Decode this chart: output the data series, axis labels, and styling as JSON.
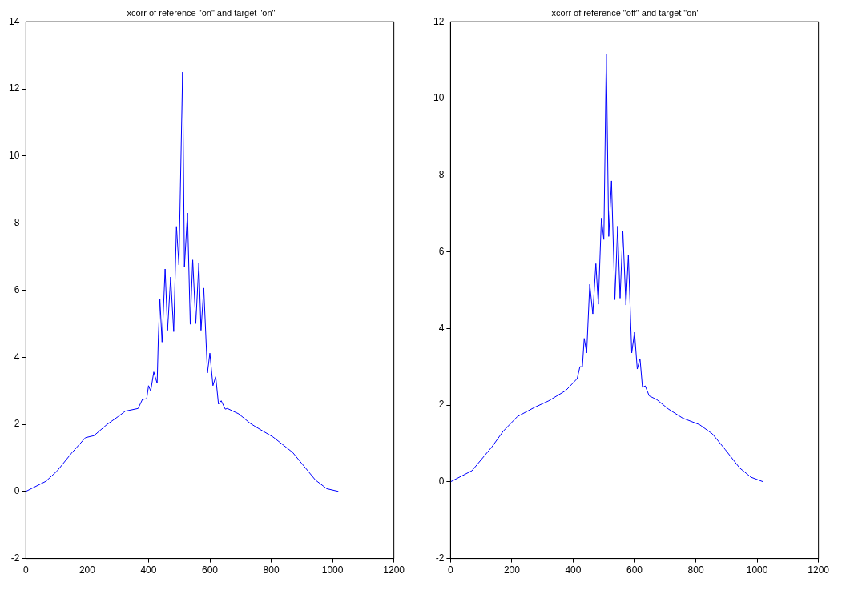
{
  "chart_data": [
    {
      "type": "line",
      "title": "xcorr of reference \"on\" and target \"on\"",
      "xlim": [
        0,
        1200
      ],
      "xticks": [
        0,
        200,
        400,
        600,
        800,
        1000,
        1200
      ],
      "ylim": [
        -2,
        14
      ],
      "yticks": [
        -2,
        0,
        2,
        4,
        6,
        8,
        10,
        12,
        14
      ],
      "grid": false,
      "legend": false,
      "series": [
        {
          "color": "#0000ff",
          "x": [
            0,
            65,
            102,
            148,
            194,
            222,
            264,
            301,
            324,
            366,
            380,
            394,
            400,
            407,
            417,
            428,
            432,
            437,
            444,
            454,
            462,
            472,
            482,
            491,
            499,
            511,
            517,
            527,
            536,
            544,
            554,
            564,
            571,
            580,
            592,
            600,
            610,
            619,
            628,
            637,
            650,
            657,
            694,
            731,
            750,
            806,
            870,
            898,
            944,
            981,
            1019
          ],
          "values": [
            0,
            0.3,
            0.61,
            1.13,
            1.6,
            1.66,
            1.99,
            2.23,
            2.39,
            2.47,
            2.74,
            2.76,
            3.15,
            2.99,
            3.56,
            3.22,
            4.6,
            5.73,
            4.45,
            6.63,
            4.8,
            6.39,
            4.76,
            7.9,
            6.75,
            12.5,
            6.7,
            8.3,
            4.98,
            6.9,
            5.0,
            6.8,
            4.8,
            6.06,
            3.53,
            4.12,
            3.15,
            3.42,
            2.6,
            2.7,
            2.45,
            2.47,
            2.31,
            2.03,
            1.92,
            1.62,
            1.16,
            0.85,
            0.34,
            0.08,
            0
          ]
        }
      ]
    },
    {
      "type": "line",
      "title": "xcorr of reference \"off\" and target \"on\"",
      "xlim": [
        0,
        1200
      ],
      "xticks": [
        0,
        200,
        400,
        600,
        800,
        1000,
        1200
      ],
      "ylim": [
        -2,
        12
      ],
      "yticks": [
        -2,
        0,
        2,
        4,
        6,
        8,
        10,
        12
      ],
      "grid": false,
      "legend": false,
      "series": [
        {
          "color": "#0000ff",
          "x": [
            0,
            70,
            135,
            172,
            218,
            274,
            320,
            376,
            413,
            422,
            430,
            436,
            444,
            454,
            464,
            474,
            482,
            492,
            500,
            508,
            516,
            525,
            536,
            545,
            553,
            562,
            572,
            580,
            591,
            600,
            609,
            618,
            626,
            635,
            648,
            673,
            710,
            757,
            812,
            854,
            896,
            943,
            980,
            1020
          ],
          "values": [
            0,
            0.29,
            0.91,
            1.32,
            1.7,
            1.94,
            2.11,
            2.38,
            2.69,
            3.0,
            3.0,
            3.74,
            3.36,
            5.15,
            4.38,
            5.69,
            4.63,
            6.88,
            6.32,
            11.15,
            6.4,
            7.85,
            4.75,
            6.67,
            4.79,
            6.55,
            4.61,
            5.92,
            3.36,
            3.9,
            2.94,
            3.21,
            2.46,
            2.5,
            2.24,
            2.14,
            1.9,
            1.66,
            1.49,
            1.25,
            0.84,
            0.36,
            0.12,
            0
          ]
        }
      ]
    }
  ]
}
